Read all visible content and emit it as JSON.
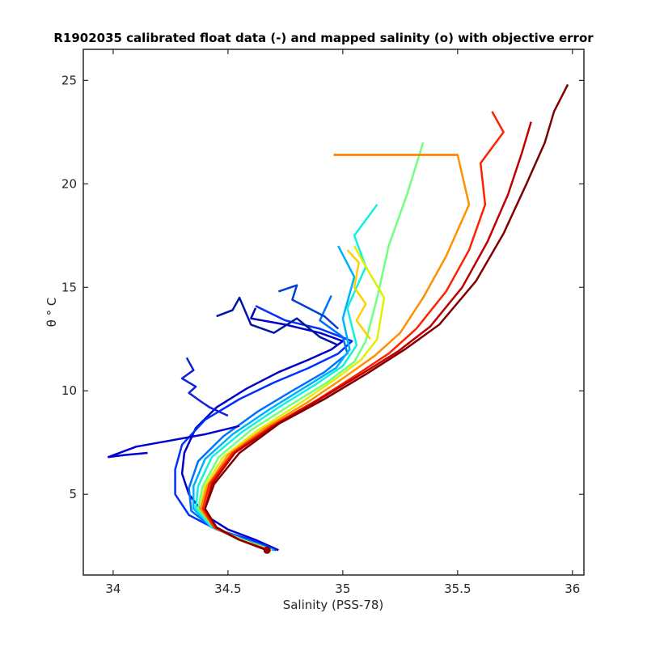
{
  "chart_data": {
    "type": "line",
    "title": "R1902035 calibrated float data (-) and mapped salinity (o) with objective error",
    "xlabel": "Salinity (PSS-78)",
    "ylabel": "θ ° C",
    "xlim": [
      33.87,
      36.05
    ],
    "ylim": [
      1.1,
      26.5
    ],
    "xticks": [
      "34",
      "34.5",
      "35",
      "35.5",
      "36"
    ],
    "yticks": [
      "5",
      "10",
      "15",
      "20",
      "25"
    ],
    "colormap": "jet (blue = early profiles, dark red = late profiles)",
    "grid": false,
    "series": [
      {
        "color": "#0000c8",
        "x": [
          34.72,
          34.62,
          34.5,
          34.4,
          34.33,
          34.3,
          34.31,
          34.36,
          34.45,
          34.58,
          34.72,
          34.85,
          34.95,
          35.0,
          34.9,
          34.75,
          34.6,
          34.62
        ],
        "y": [
          2.3,
          2.8,
          3.3,
          4.0,
          5.0,
          6.0,
          7.0,
          8.2,
          9.2,
          10.1,
          10.9,
          11.5,
          12.0,
          12.4,
          12.8,
          13.2,
          13.5,
          14.0
        ]
      },
      {
        "color": "#0030ff",
        "x": [
          34.71,
          34.6,
          34.45,
          34.33,
          34.27,
          34.27,
          34.3,
          34.4,
          34.55,
          34.7,
          34.85,
          34.98,
          35.04,
          34.9,
          34.75,
          34.62
        ],
        "y": [
          2.3,
          2.8,
          3.3,
          4.0,
          5.0,
          6.2,
          7.4,
          8.6,
          9.6,
          10.4,
          11.1,
          11.8,
          12.4,
          13.0,
          13.4,
          14.1
        ]
      },
      {
        "color": "#0070ff",
        "x": [
          34.7,
          34.58,
          34.43,
          34.34,
          34.33,
          34.37,
          34.48,
          34.63,
          34.78,
          34.92,
          35.02,
          35.0,
          34.9,
          34.95
        ],
        "y": [
          2.3,
          2.8,
          3.4,
          4.2,
          5.3,
          6.6,
          7.8,
          9.0,
          10.0,
          10.9,
          11.8,
          12.6,
          13.4,
          14.6
        ]
      },
      {
        "color": "#00b0ff",
        "x": [
          34.7,
          34.57,
          34.43,
          34.35,
          34.35,
          34.4,
          34.52,
          34.68,
          34.84,
          34.97,
          35.03,
          35.0,
          35.05,
          34.98
        ],
        "y": [
          2.3,
          2.8,
          3.4,
          4.3,
          5.4,
          6.7,
          7.9,
          9.1,
          10.2,
          11.1,
          12.0,
          13.5,
          15.5,
          17.0
        ]
      },
      {
        "color": "#10f0e0",
        "x": [
          34.69,
          34.56,
          34.43,
          34.36,
          34.37,
          34.43,
          34.56,
          34.72,
          34.88,
          35.0,
          35.06,
          35.02,
          35.1,
          35.05,
          35.15
        ],
        "y": [
          2.3,
          2.8,
          3.4,
          4.3,
          5.4,
          6.8,
          8.0,
          9.2,
          10.3,
          11.2,
          12.2,
          14.0,
          16.0,
          17.5,
          19.0
        ]
      },
      {
        "color": "#70ff80",
        "x": [
          34.69,
          34.56,
          34.44,
          34.37,
          34.39,
          34.46,
          34.6,
          34.77,
          34.93,
          35.05,
          35.1,
          35.15,
          35.2,
          35.28,
          35.35
        ],
        "y": [
          2.3,
          2.8,
          3.4,
          4.3,
          5.4,
          6.8,
          8.1,
          9.3,
          10.4,
          11.4,
          12.4,
          14.5,
          17.0,
          19.5,
          22.0
        ]
      },
      {
        "color": "#e0f000",
        "x": [
          34.69,
          34.56,
          34.44,
          34.38,
          34.4,
          34.48,
          34.63,
          34.8,
          34.96,
          35.08,
          35.15,
          35.18,
          35.1,
          35.05
        ],
        "y": [
          2.3,
          2.8,
          3.4,
          4.3,
          5.4,
          6.8,
          8.1,
          9.3,
          10.5,
          11.5,
          12.5,
          14.5,
          16.0,
          17.0
        ]
      },
      {
        "color": "#ff9000",
        "x": [
          34.68,
          34.55,
          34.44,
          34.38,
          34.41,
          34.5,
          34.66,
          34.84,
          35.0,
          35.14,
          35.25,
          35.35,
          35.45,
          35.55,
          35.5,
          34.96
        ],
        "y": [
          2.3,
          2.8,
          3.4,
          4.3,
          5.4,
          6.9,
          8.2,
          9.4,
          10.6,
          11.7,
          12.8,
          14.5,
          16.5,
          19.0,
          21.4,
          21.4
        ]
      },
      {
        "color": "#ff2000",
        "x": [
          34.68,
          34.55,
          34.44,
          34.39,
          34.42,
          34.52,
          34.69,
          34.88,
          35.05,
          35.2,
          35.32,
          35.45,
          35.55,
          35.62,
          35.6,
          35.7,
          35.65
        ],
        "y": [
          2.3,
          2.8,
          3.4,
          4.3,
          5.5,
          7.0,
          8.3,
          9.5,
          10.7,
          11.8,
          13.0,
          14.8,
          16.8,
          19.0,
          21.0,
          22.5,
          23.5
        ]
      },
      {
        "color": "#c00000",
        "x": [
          34.67,
          34.55,
          34.45,
          34.4,
          34.43,
          34.53,
          34.7,
          34.9,
          35.08,
          35.24,
          35.38,
          35.52,
          35.63,
          35.72,
          35.78,
          35.82
        ],
        "y": [
          2.3,
          2.8,
          3.4,
          4.3,
          5.5,
          7.0,
          8.3,
          9.6,
          10.8,
          11.9,
          13.1,
          15.0,
          17.2,
          19.5,
          21.5,
          23.0
        ]
      },
      {
        "color": "#800000",
        "x": [
          34.67,
          34.55,
          34.45,
          34.4,
          34.44,
          34.55,
          34.72,
          34.92,
          35.1,
          35.27,
          35.42,
          35.58,
          35.7,
          35.8,
          35.88,
          35.92,
          35.98
        ],
        "y": [
          2.3,
          2.8,
          3.4,
          4.3,
          5.5,
          7.0,
          8.4,
          9.6,
          10.8,
          12.0,
          13.2,
          15.3,
          17.6,
          20.0,
          22.0,
          23.5,
          24.8
        ]
      },
      {
        "color": "#0000d0",
        "x": [
          34.15,
          34.05,
          33.98,
          34.1,
          34.25,
          34.4,
          34.55
        ],
        "y": [
          7.0,
          6.9,
          6.8,
          7.3,
          7.6,
          7.9,
          8.3
        ]
      },
      {
        "color": "#1020e0",
        "x": [
          34.32,
          34.35,
          34.3,
          34.36,
          34.33,
          34.38,
          34.42,
          34.5
        ],
        "y": [
          11.6,
          11.0,
          10.6,
          10.2,
          9.9,
          9.5,
          9.2,
          8.8
        ]
      },
      {
        "color": "#0018a0",
        "x": [
          34.45,
          34.52,
          34.55,
          34.6,
          34.7,
          34.8,
          34.9,
          34.98
        ],
        "y": [
          13.6,
          13.9,
          14.5,
          13.2,
          12.8,
          13.5,
          12.6,
          12.2
        ]
      },
      {
        "color": "#0040d0",
        "x": [
          34.72,
          34.8,
          34.78,
          34.85,
          34.92,
          34.98
        ],
        "y": [
          14.8,
          15.1,
          14.4,
          14.0,
          13.6,
          13.0
        ]
      },
      {
        "color": "#ff8000",
        "x": [
          34.96,
          35.5
        ],
        "y": [
          21.4,
          21.4
        ]
      },
      {
        "color": "#ffd000",
        "x": [
          35.02,
          35.07,
          35.05,
          35.1,
          35.06,
          35.12
        ],
        "y": [
          16.8,
          16.2,
          15.0,
          14.2,
          13.4,
          12.5
        ]
      }
    ]
  }
}
